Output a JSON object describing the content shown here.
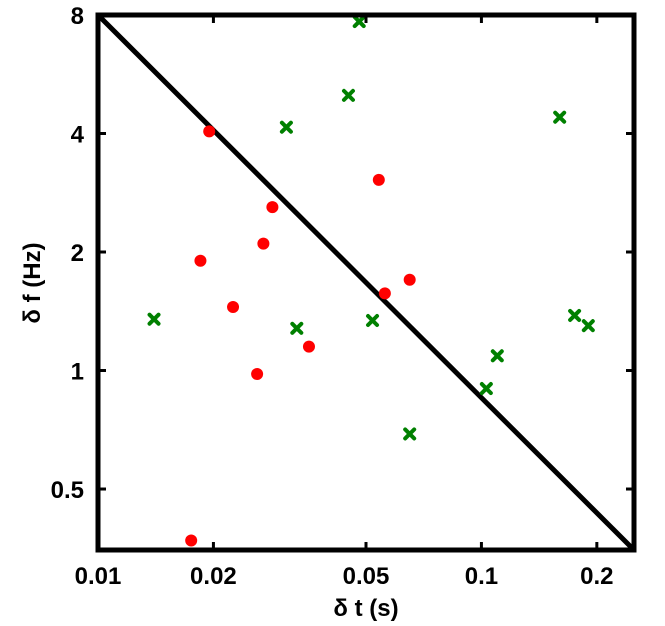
{
  "chart_data": {
    "type": "scatter",
    "title": "",
    "xlabel": "δ t (s)",
    "ylabel": "δ f (Hz)",
    "x_scale": "log",
    "y_scale": "log",
    "xlim": [
      0.01,
      0.25
    ],
    "ylim": [
      0.35,
      8
    ],
    "x_ticks": [
      0.01,
      0.02,
      0.05,
      0.1,
      0.2
    ],
    "x_tick_labels": [
      "0.01",
      "0.02",
      "0.05",
      "0.1",
      "0.2"
    ],
    "y_ticks": [
      0.5,
      1,
      2,
      4,
      8
    ],
    "y_tick_labels": [
      "0.5",
      "1",
      "2",
      "4",
      "8"
    ],
    "grid": false,
    "line": {
      "x": [
        0.01,
        0.25
      ],
      "y": [
        8,
        0.35
      ],
      "color": "#000000"
    },
    "series": [
      {
        "marker": "circle",
        "color": "#ff0000",
        "points": [
          [
            0.0195,
            4.05
          ],
          [
            0.0185,
            1.9
          ],
          [
            0.0225,
            1.45
          ],
          [
            0.027,
            2.1
          ],
          [
            0.0285,
            2.6
          ],
          [
            0.026,
            0.98
          ],
          [
            0.0175,
            0.37
          ],
          [
            0.0355,
            1.15
          ],
          [
            0.054,
            3.05
          ],
          [
            0.056,
            1.57
          ],
          [
            0.065,
            1.7
          ]
        ]
      },
      {
        "marker": "x",
        "color": "#008000",
        "points": [
          [
            0.014,
            1.35
          ],
          [
            0.031,
            4.15
          ],
          [
            0.033,
            1.28
          ],
          [
            0.045,
            5.0
          ],
          [
            0.048,
            7.7
          ],
          [
            0.052,
            1.34
          ],
          [
            0.065,
            0.69
          ],
          [
            0.103,
            0.9
          ],
          [
            0.11,
            1.09
          ],
          [
            0.16,
            4.4
          ],
          [
            0.175,
            1.38
          ],
          [
            0.19,
            1.3
          ]
        ]
      }
    ]
  }
}
